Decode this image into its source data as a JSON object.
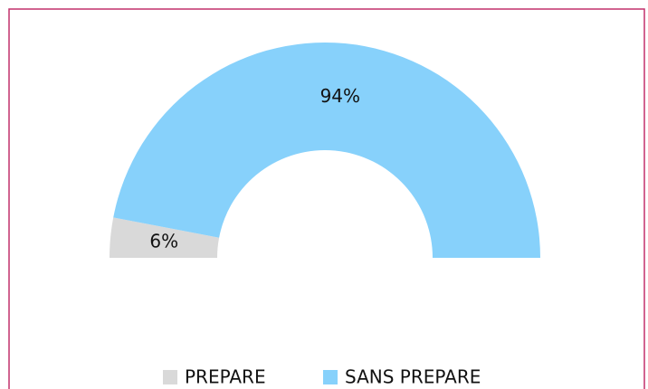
{
  "chart_data": {
    "type": "pie",
    "categories": [
      "PREPARE",
      "SANS PREPARE"
    ],
    "values": [
      6,
      94
    ],
    "value_labels": [
      "6%",
      "94%"
    ],
    "colors": [
      "#d9d9d9",
      "#87d1fb"
    ]
  }
}
